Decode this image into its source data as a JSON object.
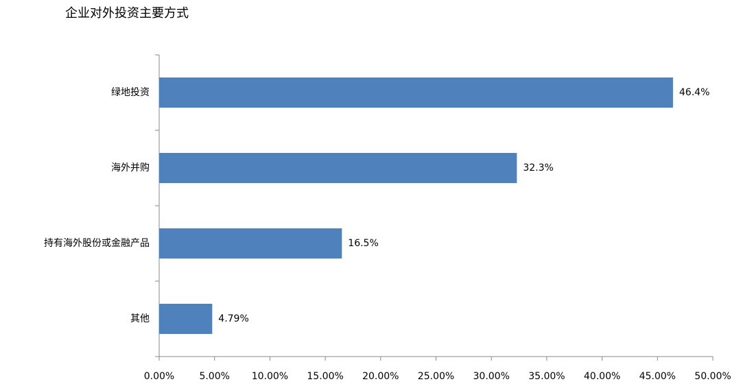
{
  "chart_data": {
    "type": "barh",
    "title": "企业对外投资主要方式",
    "categories": [
      "绿地投资",
      "海外并购",
      "持有海外股份或金融产品",
      "其他"
    ],
    "values": [
      46.4,
      32.3,
      16.5,
      4.79
    ],
    "value_labels": [
      "46.4%",
      "32.3%",
      "16.5%",
      "4.79%"
    ],
    "color": "#4f81bd",
    "xlim": [
      0,
      50
    ],
    "xticks": [
      {
        "value": 0,
        "label": "0.00%"
      },
      {
        "value": 5,
        "label": "5.00%"
      },
      {
        "value": 10,
        "label": "10.00%"
      },
      {
        "value": 15,
        "label": "15.00%"
      },
      {
        "value": 20,
        "label": "20.00%"
      },
      {
        "value": 25,
        "label": "25.00%"
      },
      {
        "value": 30,
        "label": "30.00%"
      },
      {
        "value": 35,
        "label": "35.00%"
      },
      {
        "value": 40,
        "label": "40.00%"
      },
      {
        "value": 45,
        "label": "45.00%"
      },
      {
        "value": 50,
        "label": "50.00%"
      }
    ],
    "grid": false
  }
}
